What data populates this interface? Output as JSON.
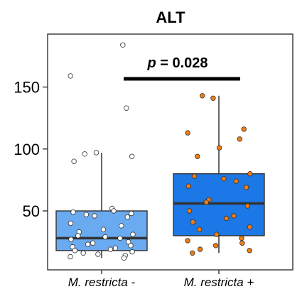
{
  "chart_data": {
    "type": "box",
    "title": "ALT",
    "xlabel": "",
    "ylabel": "",
    "ylim": [
      0,
      190
    ],
    "yticks": [
      50,
      100,
      150
    ],
    "categories": [
      "M. restricta -",
      "M. restricta +"
    ],
    "colors": {
      "M. restricta -": "#6aaaf0",
      "M. restricta +": "#1c78e6",
      "points_neg": "#ffffff",
      "points_pos": "#f07c14",
      "axis": "#333333"
    },
    "boxes": [
      {
        "category": "M. restricta -",
        "whisker_low": 12,
        "q1": 18,
        "median": 28,
        "q3": 50,
        "whisker_high": 97
      },
      {
        "category": "M. restricta +",
        "whisker_low": 16,
        "q1": 30,
        "median": 56,
        "q3": 80,
        "whisker_high": 143
      }
    ],
    "points": [
      [
        184,
        159,
        133,
        97,
        96,
        94,
        90,
        52,
        50,
        49,
        48,
        47,
        46,
        45,
        40,
        38,
        35,
        33,
        31,
        30,
        29,
        28,
        27,
        25,
        24,
        23,
        22,
        21,
        20,
        19,
        18,
        17,
        16,
        15,
        14,
        13,
        12
      ],
      [
        143,
        141,
        116,
        113,
        108,
        101,
        94,
        80,
        78,
        76,
        74,
        70,
        69,
        59,
        57,
        54,
        50,
        46,
        44,
        41,
        37,
        35,
        31,
        28,
        26,
        24,
        22,
        19,
        18,
        16
      ]
    ],
    "annotation": {
      "p_label": "p",
      "p_text": " = 0.028"
    }
  }
}
